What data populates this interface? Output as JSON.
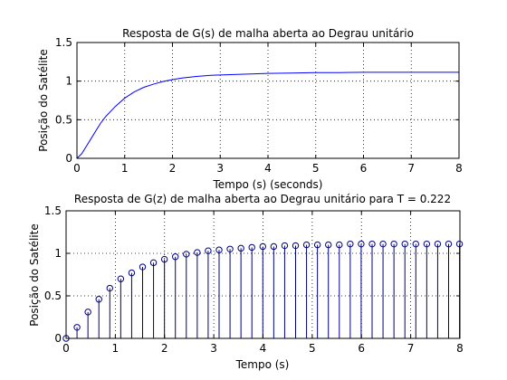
{
  "chart_data": [
    {
      "type": "line",
      "title": "Resposta de G(s) de malha aberta ao Degrau unitário",
      "xlabel": "Tempo (s) (seconds)",
      "ylabel": "Posição do Satélite",
      "xlim": [
        0,
        8
      ],
      "ylim": [
        0,
        1.5
      ],
      "xticks": [
        0,
        1,
        2,
        3,
        4,
        5,
        6,
        7,
        8
      ],
      "yticks": [
        0,
        0.5,
        1,
        1.5
      ],
      "grid": true,
      "color": "#0000ff",
      "series": [
        {
          "x": [
            0,
            0.1,
            0.2,
            0.3,
            0.4,
            0.5,
            0.6,
            0.8,
            1.0,
            1.2,
            1.4,
            1.6,
            1.8,
            2.0,
            2.2,
            2.5,
            2.8,
            3.0,
            3.5,
            4.0,
            4.5,
            5.0,
            5.5,
            6.0,
            6.5,
            7.0,
            7.5,
            8.0
          ],
          "y": [
            0,
            0.06,
            0.16,
            0.26,
            0.36,
            0.46,
            0.54,
            0.67,
            0.78,
            0.86,
            0.92,
            0.96,
            0.995,
            1.02,
            1.04,
            1.06,
            1.075,
            1.08,
            1.09,
            1.1,
            1.105,
            1.11,
            1.11,
            1.115,
            1.115,
            1.115,
            1.115,
            1.115
          ]
        }
      ]
    },
    {
      "type": "stem",
      "title": "Resposta de G(z) de malha aberta ao Degrau unitário para T = 0.222",
      "xlabel": "Tempo (s)",
      "ylabel": "Posição do Satélite",
      "xlim": [
        0,
        8
      ],
      "ylim": [
        0,
        1.5
      ],
      "xticks": [
        0,
        1,
        2,
        3,
        4,
        5,
        6,
        7,
        8
      ],
      "yticks": [
        0,
        0.5,
        1,
        1.5
      ],
      "grid": true,
      "color": "#000080",
      "sample_period": 0.222,
      "series": [
        {
          "y": [
            0,
            0.13,
            0.31,
            0.46,
            0.59,
            0.7,
            0.77,
            0.84,
            0.89,
            0.93,
            0.96,
            0.99,
            1.01,
            1.03,
            1.04,
            1.05,
            1.06,
            1.07,
            1.08,
            1.08,
            1.09,
            1.09,
            1.1,
            1.1,
            1.1,
            1.1,
            1.11,
            1.11,
            1.11,
            1.11,
            1.11,
            1.11,
            1.11,
            1.11,
            1.11,
            1.11,
            1.11
          ]
        }
      ]
    }
  ]
}
